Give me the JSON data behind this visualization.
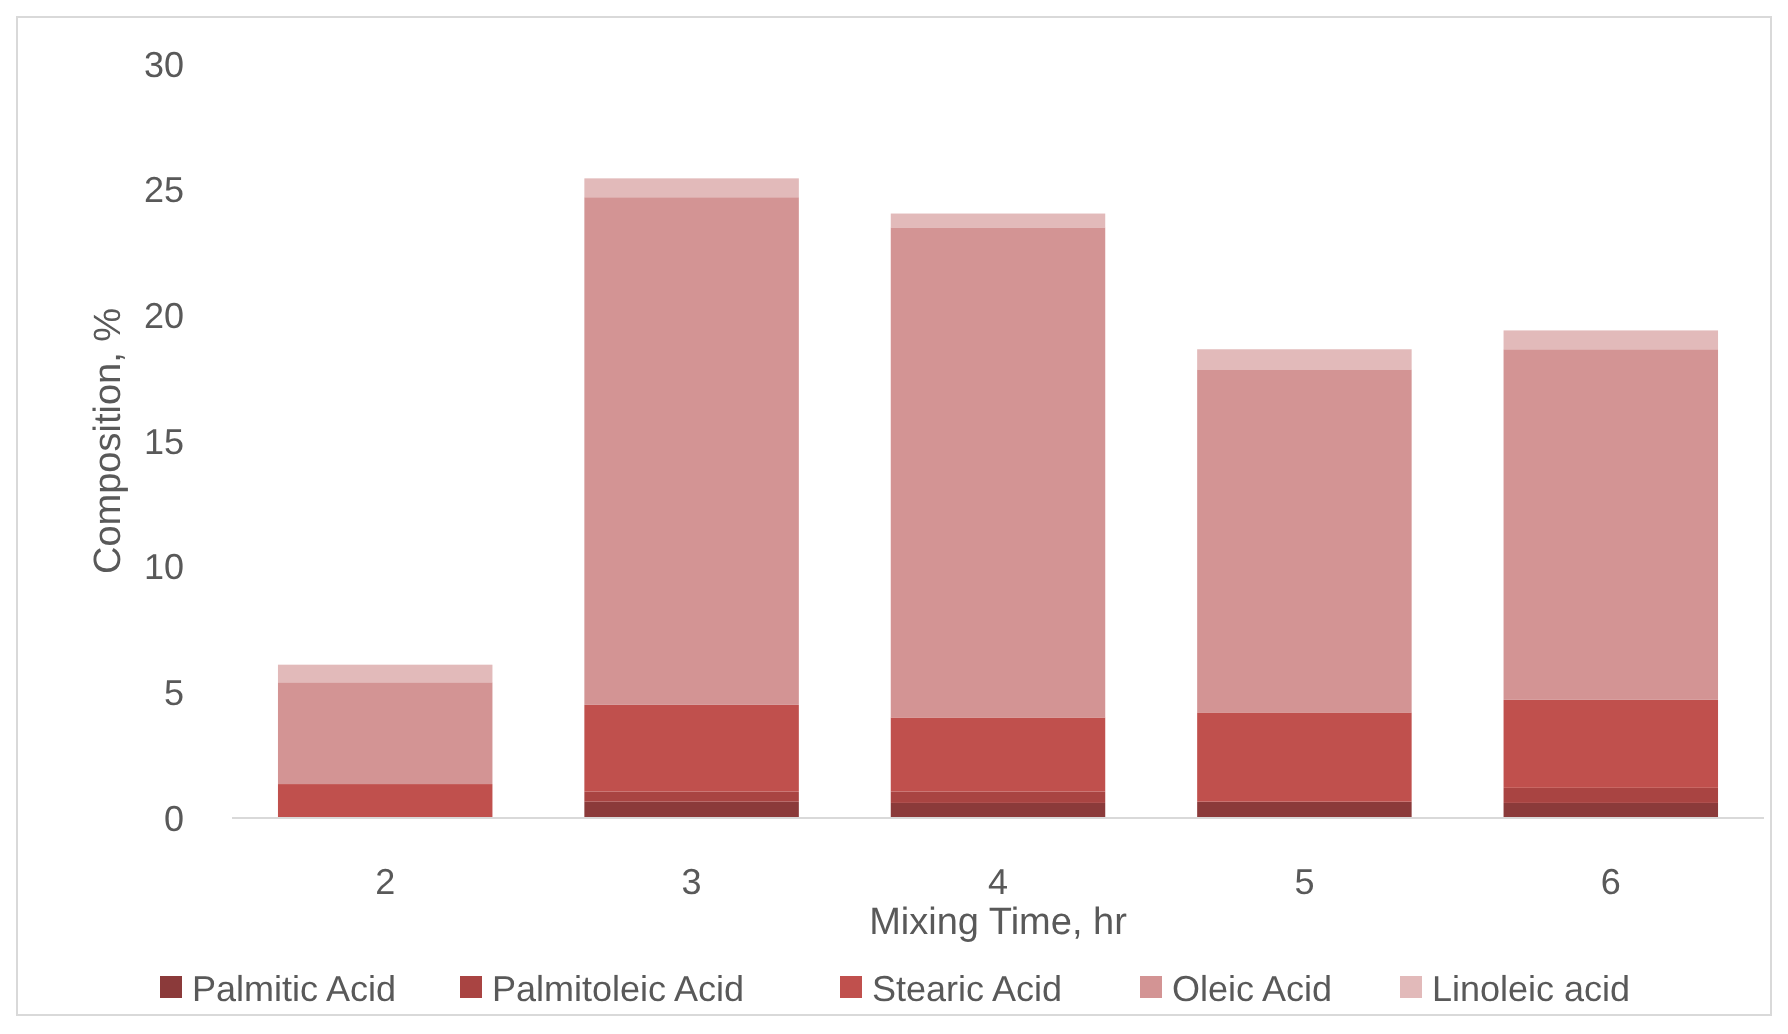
{
  "chart_data": {
    "type": "bar",
    "stacked": true,
    "xlabel": "Mixing Time, hr",
    "ylabel": "Composition, %",
    "categories": [
      "2",
      "3",
      "4",
      "5",
      "6"
    ],
    "series": [
      {
        "name": "Palmitic Acid",
        "color": "#8b3a3a",
        "values": [
          0,
          0.65,
          0.6,
          0.65,
          0.6
        ]
      },
      {
        "name": "Palmitoleic Acid",
        "color": "#a94442",
        "values": [
          0,
          0.4,
          0.45,
          0,
          0.6
        ]
      },
      {
        "name": "Stearic Acid",
        "color": "#c0504d",
        "values": [
          1.35,
          3.45,
          2.95,
          3.55,
          3.5
        ]
      },
      {
        "name": "Oleic Acid",
        "color": "#d39494",
        "values": [
          4.05,
          20.2,
          19.5,
          13.65,
          13.95
        ]
      },
      {
        "name": "Linoleic acid",
        "color": "#e2baba",
        "values": [
          0.7,
          0.75,
          0.55,
          0.8,
          0.75
        ]
      }
    ],
    "ylim": [
      0,
      30
    ],
    "yticks": [
      0,
      5,
      10,
      15,
      20,
      25,
      30
    ],
    "grid": false,
    "legend": "bottom"
  }
}
